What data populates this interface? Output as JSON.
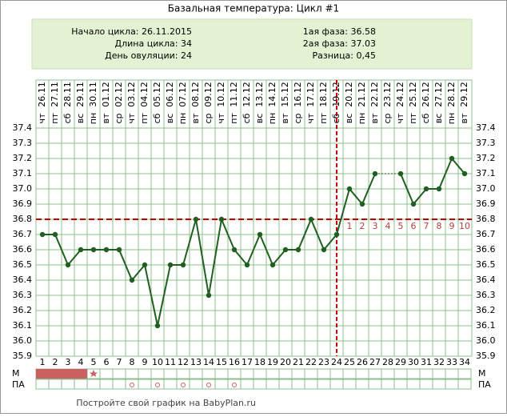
{
  "chart_data": {
    "type": "line",
    "title": "Базальная температура: Цикл #1",
    "info": {
      "left": [
        "Начало цикла: 26.11.2015",
        "Длина цикла: 34",
        "День овуляции: 24"
      ],
      "right": [
        "1ая фаза: 36.58",
        "2ая фаза: 37.03",
        "Разница: 0,45"
      ]
    },
    "x": [
      1,
      2,
      3,
      4,
      5,
      6,
      7,
      8,
      9,
      10,
      11,
      12,
      13,
      14,
      15,
      16,
      17,
      18,
      19,
      20,
      21,
      22,
      23,
      24,
      25,
      26,
      27,
      28,
      29,
      30,
      31,
      32,
      33,
      34
    ],
    "dates": [
      "26.11",
      "27.11",
      "28.11",
      "29.11",
      "30.11",
      "01.12",
      "02.12",
      "03.12",
      "04.12",
      "05.12",
      "06.12",
      "07.12",
      "08.12",
      "09.12",
      "10.12",
      "11.12",
      "12.12",
      "13.12",
      "14.12",
      "15.12",
      "16.12",
      "17.12",
      "18.12",
      "19.12",
      "20.12",
      "21.12",
      "22.12",
      "23.12",
      "24.12",
      "25.12",
      "26.12",
      "27.12",
      "28.12",
      "29.12"
    ],
    "weekdays": [
      "чт",
      "пт",
      "сб",
      "вс",
      "пн",
      "вт",
      "ср",
      "чт",
      "пт",
      "сб",
      "вс",
      "пн",
      "вт",
      "ср",
      "чт",
      "пт",
      "сб",
      "вс",
      "пн",
      "вт",
      "ср",
      "чт",
      "пт",
      "сб",
      "вс",
      "пн",
      "вт",
      "ср",
      "чт",
      "пт",
      "сб",
      "вс",
      "пн",
      "вт"
    ],
    "series": [
      {
        "name": "Температура",
        "color": "#1f5f1f",
        "values": [
          36.7,
          36.7,
          36.5,
          36.6,
          36.6,
          36.6,
          36.6,
          36.4,
          36.5,
          36.1,
          36.5,
          36.5,
          36.8,
          36.3,
          36.8,
          36.6,
          36.5,
          36.7,
          36.5,
          36.6,
          36.6,
          36.8,
          36.6,
          36.7,
          37.0,
          36.9,
          37.1,
          null,
          37.1,
          36.9,
          37.0,
          37.0,
          37.2,
          37.1
        ]
      }
    ],
    "ylim": [
      35.9,
      37.4
    ],
    "yticks": [
      35.9,
      {
        "value": 36.0,
        "label": "36.0"
      },
      36.1,
      36.2,
      36.3,
      36.4,
      36.5,
      36.6,
      36.7,
      36.8,
      36.9,
      {
        "value": 37.0,
        "label": "37.0"
      },
      37.1,
      37.2,
      37.3,
      37.4
    ],
    "cover_line": 36.8,
    "ovulation_day": 24,
    "line_color": "#c00000",
    "phase2_labels": [
      1,
      2,
      3,
      4,
      5,
      6,
      7,
      8,
      9,
      10
    ],
    "rows": {
      "m": "М",
      "pa": "ПА"
    },
    "m_days": [
      1,
      2,
      3,
      4
    ],
    "m_star_day": 5,
    "pa_days": [
      8,
      10,
      12,
      14,
      16
    ],
    "footer": "Постройте свой график на BabyPlan.ru"
  }
}
